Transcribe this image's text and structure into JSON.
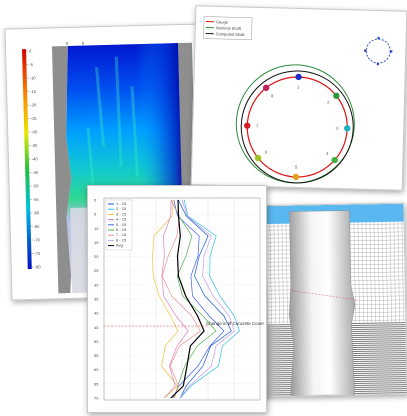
{
  "heatmap": {
    "scale_labels": [
      "0",
      "-5",
      "-10",
      "-15",
      "-20",
      "-25",
      "-30",
      "-35",
      "-40",
      "-45",
      "-50",
      "-55",
      "-60",
      "-65",
      "-70",
      "-75",
      "-80"
    ],
    "top_marks": [
      "0",
      "6"
    ],
    "colors": {
      "deep": "#0000c8",
      "mid": "#00a0ff",
      "teal": "#20c8a0",
      "grey": "#8c8c8c"
    }
  },
  "circles": {
    "legend": [
      {
        "label": "Gauge",
        "color": "#e01010"
      },
      {
        "label": "Nominal Shaft",
        "color": "#2d8c3c"
      },
      {
        "label": "Computed Shaft",
        "color": "#111111"
      }
    ],
    "gauge_labels": [
      "1",
      "2",
      "3",
      "4",
      "5",
      "6",
      "7",
      "8"
    ],
    "dot_colors": [
      "#1a2ecc",
      "#2a9a3a",
      "#1ab0c0",
      "#40b040",
      "#e0a020",
      "#a0c020",
      "#d02020",
      "#c02060"
    ]
  },
  "profile": {
    "legend": [
      "1 - 15",
      "2 - 15",
      "3 - 15",
      "4 - 15",
      "5 - 15",
      "6 - 15",
      "7 - 15",
      "8 - 15",
      "Avg"
    ],
    "series_colors": [
      "#1a5ad0",
      "#30c0e0",
      "#f0c040",
      "#e080c0",
      "#4060f0",
      "#50b050",
      "#f09090",
      "#c0a0f0",
      "#000000"
    ],
    "annotation": "Change in Ø Concrete Cover",
    "depth_ticks": [
      "0",
      "5",
      "10",
      "15",
      "20",
      "25",
      "30",
      "35",
      "40",
      "45",
      "50",
      "55",
      "60",
      "65",
      "70"
    ]
  }
}
